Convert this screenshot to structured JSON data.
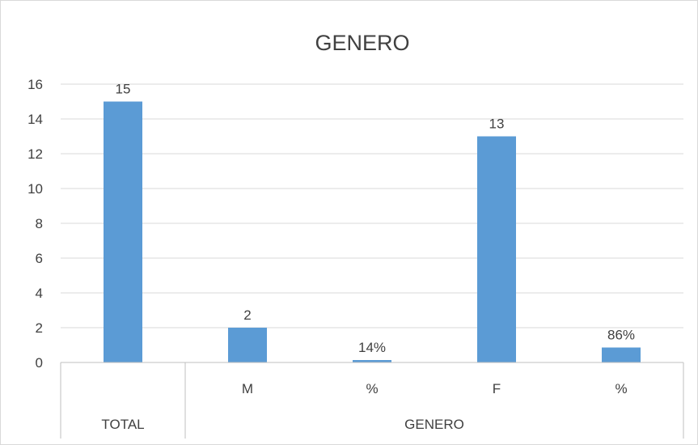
{
  "chart_data": {
    "type": "bar",
    "title": "GENERO",
    "categories": [
      {
        "label": "",
        "group": "TOTAL"
      },
      {
        "label": "M",
        "group": "GENERO"
      },
      {
        "label": "%",
        "group": "GENERO"
      },
      {
        "label": "F",
        "group": "GENERO"
      },
      {
        "label": "%",
        "group": "GENERO"
      }
    ],
    "groups": [
      {
        "label": "TOTAL",
        "span": 1
      },
      {
        "label": "GENERO",
        "span": 4
      }
    ],
    "values": [
      15,
      2,
      0.14,
      13,
      0.86
    ],
    "data_labels": [
      "15",
      "2",
      "14%",
      "13",
      "86%"
    ],
    "ylim": [
      0,
      16
    ],
    "yticks": [
      0,
      2,
      4,
      6,
      8,
      10,
      12,
      14,
      16
    ],
    "grid": true,
    "legend": "none",
    "bar_color": "#5b9bd5"
  }
}
